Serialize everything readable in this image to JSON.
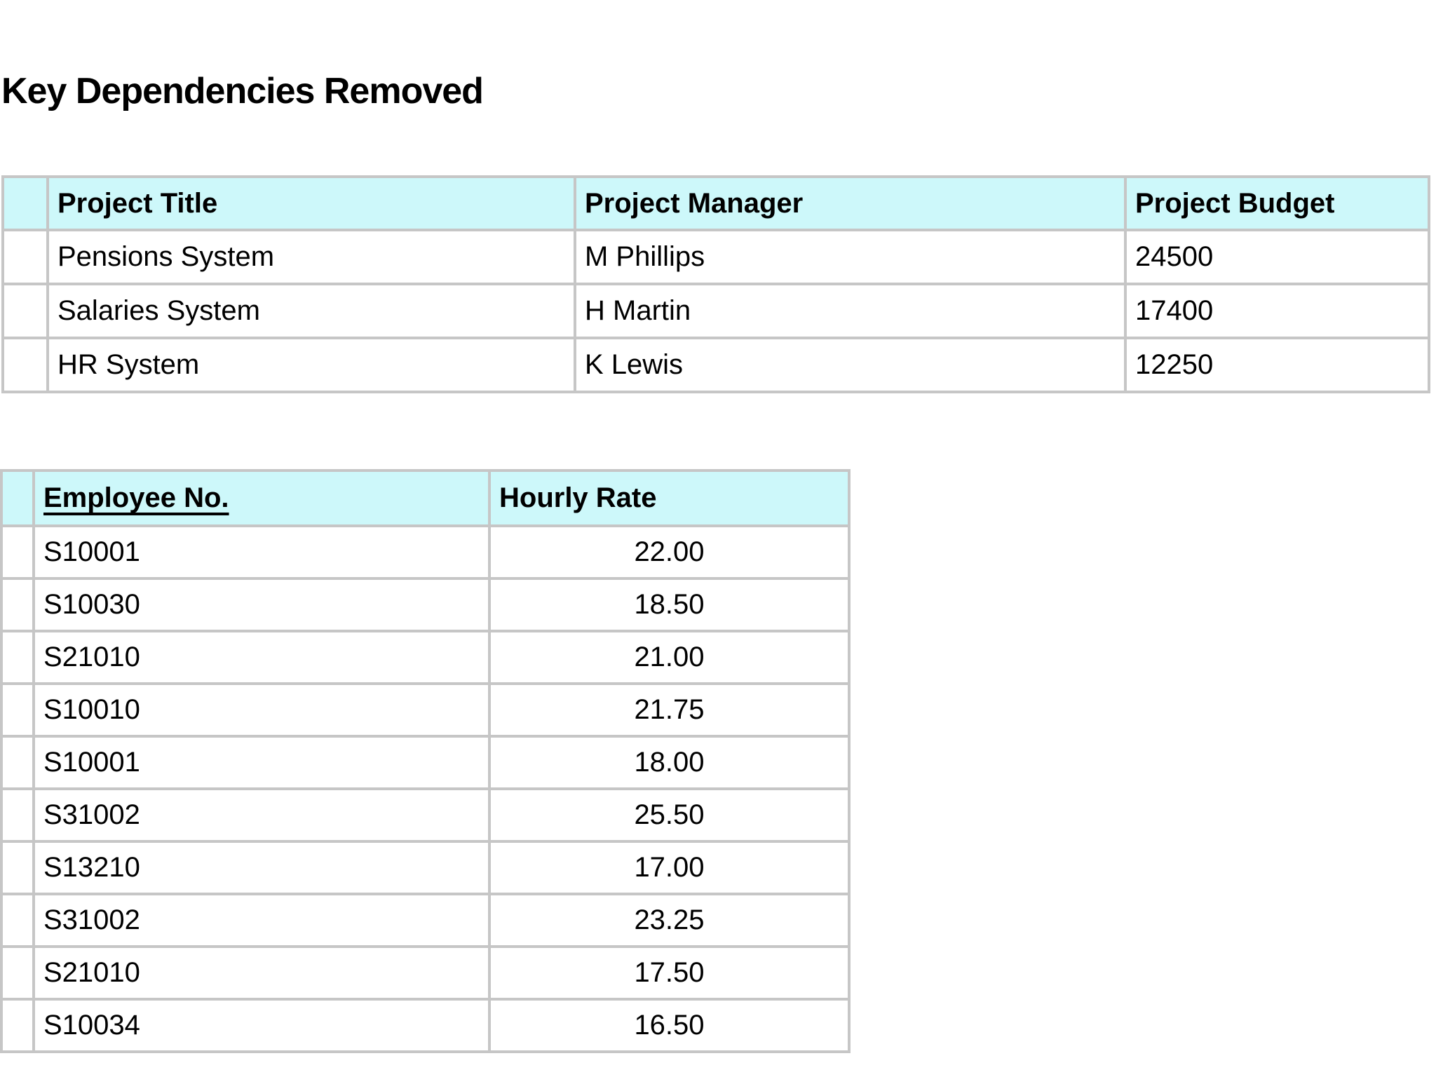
{
  "page": {
    "title": "Key Dependencies Removed"
  },
  "colors": {
    "header_bg": "#cdf8fa",
    "border": "#c6c6c6",
    "text": "#000000",
    "page_bg": "#ffffff"
  },
  "projects_table": {
    "columns": [
      "",
      "Project Title",
      "Project Manager",
      "Project Budget"
    ],
    "rows": [
      [
        "",
        "Pensions System",
        "M Phillips",
        "24500"
      ],
      [
        "",
        "Salaries System",
        "H Martin",
        "17400"
      ],
      [
        "",
        "HR System",
        "K Lewis",
        "12250"
      ]
    ]
  },
  "rates_table": {
    "columns": [
      "",
      "Employee No.",
      "Hourly Rate"
    ],
    "rows": [
      [
        "",
        "S10001",
        "22.00"
      ],
      [
        "",
        "S10030",
        "18.50"
      ],
      [
        "",
        "S21010",
        "21.00"
      ],
      [
        "",
        "S10010",
        "21.75"
      ],
      [
        "",
        "S10001",
        "18.00"
      ],
      [
        "",
        "S31002",
        "25.50"
      ],
      [
        "",
        "S13210",
        "17.00"
      ],
      [
        "",
        "S31002",
        "23.25"
      ],
      [
        "",
        "S21010",
        "17.50"
      ],
      [
        "",
        "S10034",
        "16.50"
      ]
    ]
  }
}
